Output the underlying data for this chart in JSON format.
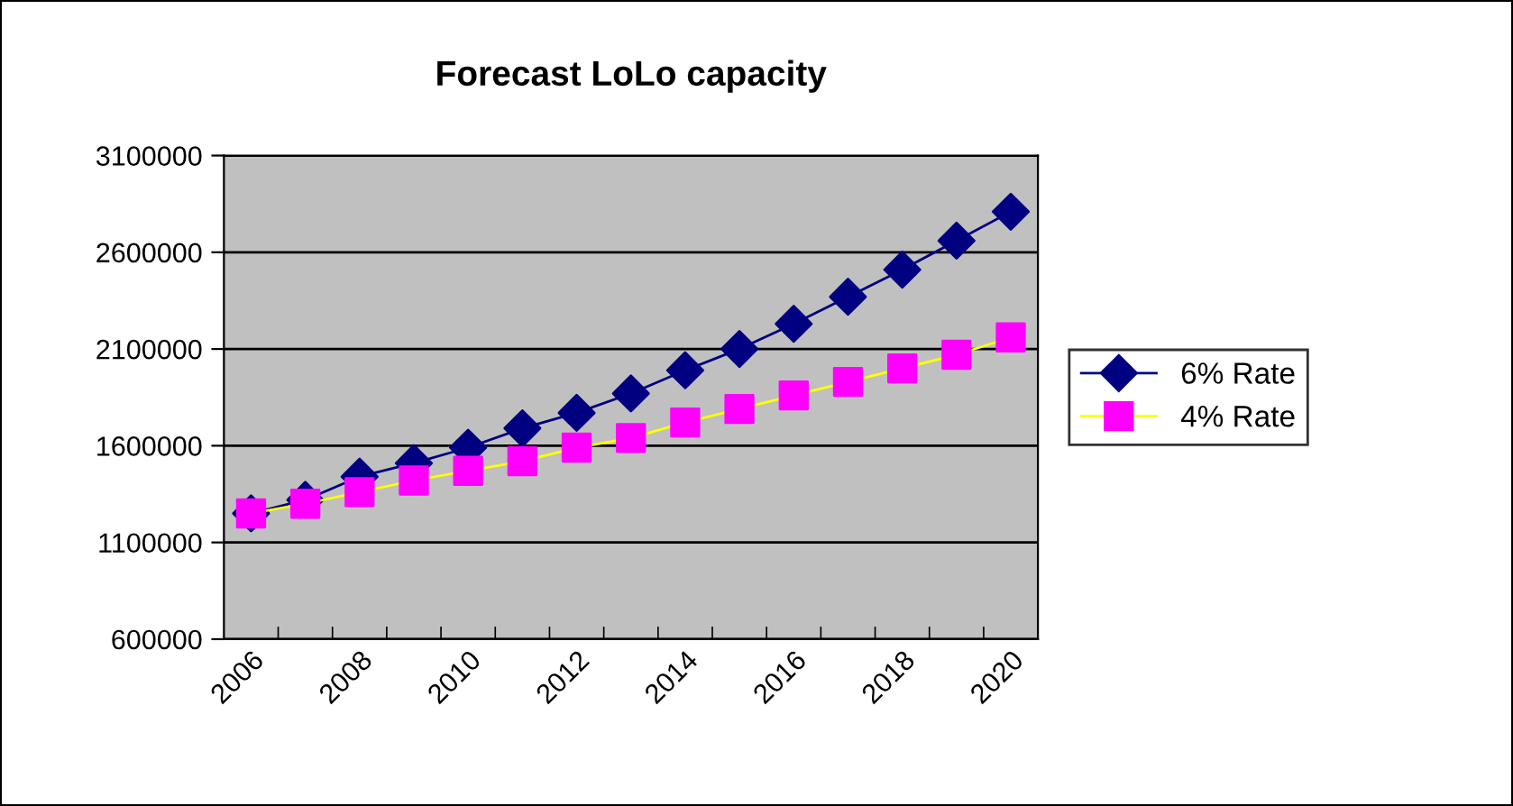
{
  "chart_data": {
    "type": "line",
    "title": "Forecast LoLo capacity",
    "categories": [
      "2006",
      null,
      "2008",
      null,
      "2010",
      null,
      "2012",
      null,
      "2014",
      null,
      "2016",
      null,
      "2018",
      null,
      "2020"
    ],
    "series": [
      {
        "name": "6% Rate",
        "color": "#000080",
        "marker": "diamond",
        "values": [
          1250000,
          1320000,
          1440000,
          1510000,
          1590000,
          1690000,
          1770000,
          1870000,
          1990000,
          2100000,
          2230000,
          2370000,
          2510000,
          2660000,
          2810000
        ]
      },
      {
        "name": "4% Rate",
        "color": "#ffff00",
        "colors": [
          "#ff00ff",
          "#ff00ff",
          "#ff00ff",
          "#ff00ff",
          "#ff00ff",
          "#ff00ff",
          "#ff00ff",
          "#ff00ff",
          "#ff00ff",
          "#ff00ff",
          "#ff00ff",
          "#ff00ff",
          "#ff00ff",
          "#ff00ff",
          "#ff00ff"
        ],
        "marker": "square",
        "values": [
          1250000,
          1300000,
          1360000,
          1420000,
          1470000,
          1520000,
          1590000,
          1640000,
          1720000,
          1790000,
          1860000,
          1930000,
          2000000,
          2070000,
          2160000
        ]
      }
    ],
    "ylim": [
      600000,
      3100000
    ],
    "yticks": [
      600000,
      1100000,
      1600000,
      2100000,
      2600000,
      3100000
    ],
    "grid": "y",
    "legend": "right"
  }
}
